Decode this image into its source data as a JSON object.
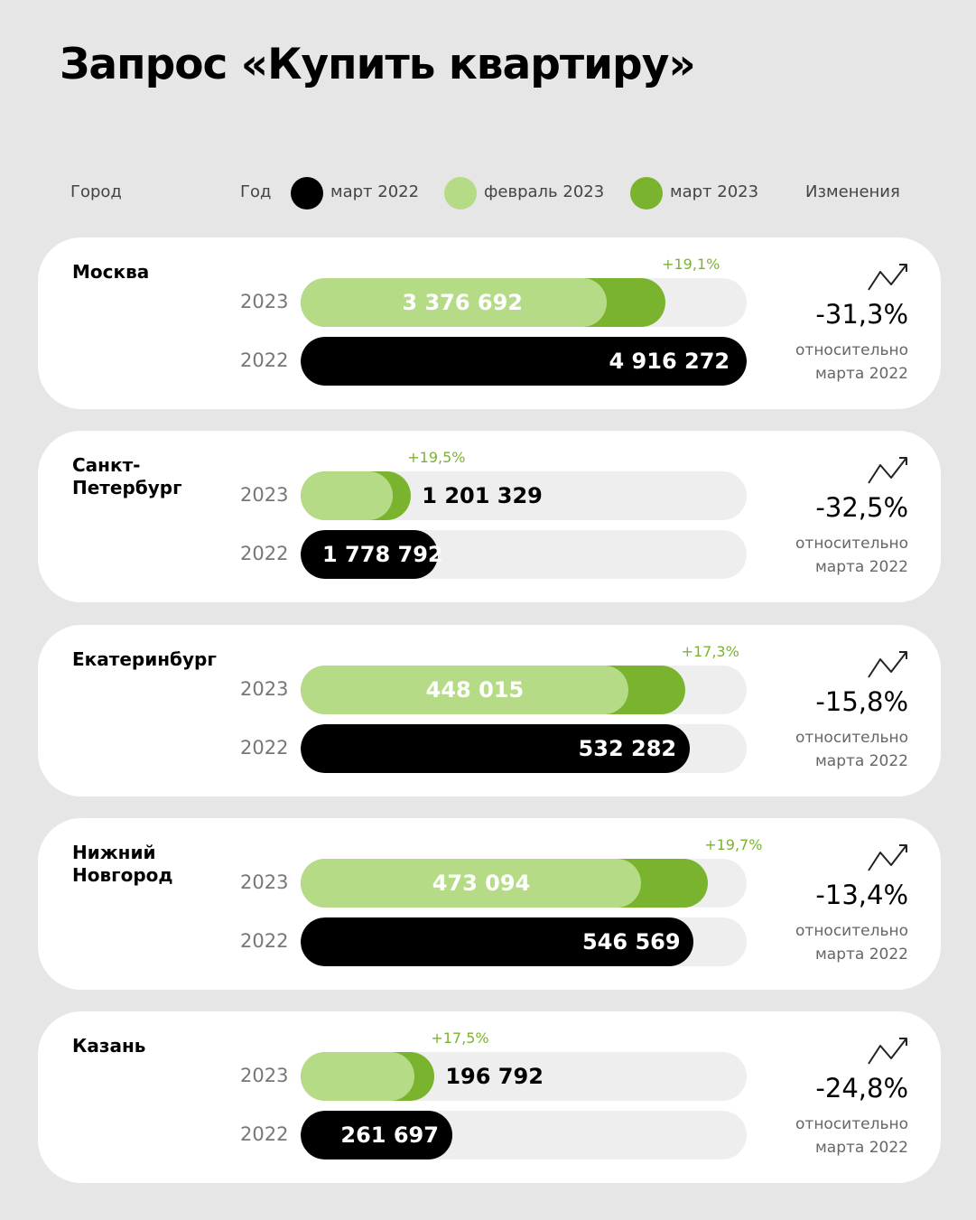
{
  "title": "Запрос «Купить квартиру»",
  "header": {
    "city": "Город",
    "year": "Год",
    "legend": [
      {
        "label": "март 2022",
        "color": "#000000"
      },
      {
        "label": "февраль 2023",
        "color": "#b6db86"
      },
      {
        "label": "март 2023",
        "color": "#7ab42f"
      }
    ],
    "changes": "Изменения"
  },
  "year_labels": {
    "current": "2023",
    "previous": "2022"
  },
  "note_text": "относительно марта 2022",
  "icons": {
    "trend": "trend-up-arrow-icon"
  },
  "colors": {
    "background": "#e6e6e6",
    "card": "#ffffff",
    "march_2022": "#000000",
    "february_2023": "#b6db86",
    "march_2023": "#7ab42f",
    "track": "#eeeeee"
  },
  "chart_data": {
    "type": "bar",
    "title": "Запрос «Купить квартиру»",
    "series_names": [
      "март 2022",
      "февраль 2023",
      "март 2023"
    ],
    "rows": [
      {
        "city": "Москва",
        "city_lines": [
          "Москва"
        ],
        "feb2023": 3376692,
        "feb2023_label": "3 376 692",
        "mar2023_growth": "+19,1%",
        "mar2022": 4916272,
        "mar2022_label": "4 916 272",
        "change": "-31,3%"
      },
      {
        "city": "Санкт-Петербург",
        "city_lines": [
          "Санкт-",
          "Петербург"
        ],
        "feb2023": 1201329,
        "feb2023_label": "1 201 329",
        "mar2023_growth": "+19,5%",
        "mar2022": 1778792,
        "mar2022_label": "1 778 792",
        "change": "-32,5%"
      },
      {
        "city": "Екатеринбург",
        "city_lines": [
          "Екатеринбург"
        ],
        "feb2023": 448015,
        "feb2023_label": "448 015",
        "mar2023_growth": "+17,3%",
        "mar2022": 532282,
        "mar2022_label": "532 282",
        "change": "-15,8%"
      },
      {
        "city": "Нижний Новгород",
        "city_lines": [
          "Нижний",
          "Новгород"
        ],
        "feb2023": 473094,
        "feb2023_label": "473 094",
        "mar2023_growth": "+19,7%",
        "mar2022": 546569,
        "mar2022_label": "546 569",
        "change": "-13,4%"
      },
      {
        "city": "Казань",
        "city_lines": [
          "Казань"
        ],
        "feb2023": 196792,
        "feb2023_label": "196 792",
        "mar2023_growth": "+17,5%",
        "mar2022": 261697,
        "mar2022_label": "261 697",
        "change": "-24,8%"
      }
    ]
  }
}
